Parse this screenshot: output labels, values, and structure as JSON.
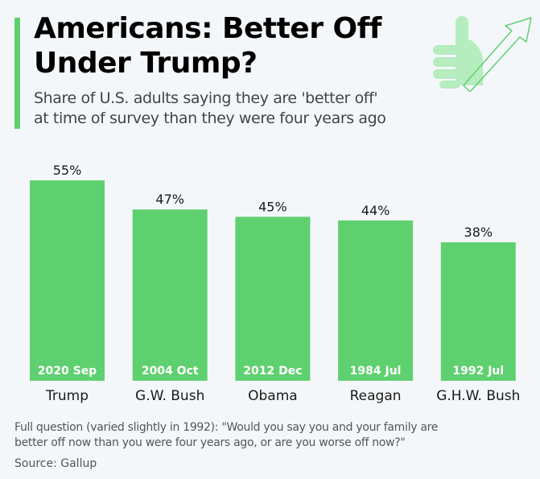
{
  "header": {
    "title_line1": "Americans: Better Off",
    "title_line2": "Under Trump?",
    "subtitle_line1": "Share of U.S. adults saying they are 'better off'",
    "subtitle_line2": "at time of survey than they were four years ago",
    "icon": "thumbs-up-with-rising-arrow"
  },
  "footer": {
    "note_line1": "Full question (varied slightly in 1992): \"Would you say you and your family are",
    "note_line2": "better off now than you were four years ago, or are you worse off now?\"",
    "source": "Source: Gallup"
  },
  "colors": {
    "bar": "#5fd06f",
    "accent": "#5fd06f",
    "background": "#f4f7fa",
    "bar_inner_label": "#ffffff"
  },
  "chart_data": {
    "type": "bar",
    "title": "Americans: Better Off Under Trump?",
    "subtitle": "Share of U.S. adults saying they are 'better off' at time of survey than they were four years ago",
    "categories": [
      "Trump",
      "G.W. Bush",
      "Obama",
      "Reagan",
      "G.H.W. Bush"
    ],
    "survey_dates": [
      "2020 Sep",
      "2004 Oct",
      "2012 Dec",
      "1984 Jul",
      "1992 Jul"
    ],
    "values": [
      55,
      47,
      45,
      44,
      38
    ],
    "data_labels": [
      "55%",
      "47%",
      "45%",
      "44%",
      "38%"
    ],
    "unit": "%",
    "xlabel": "",
    "ylabel": "",
    "ylim": [
      0,
      55
    ],
    "grid": false,
    "legend": "none"
  }
}
